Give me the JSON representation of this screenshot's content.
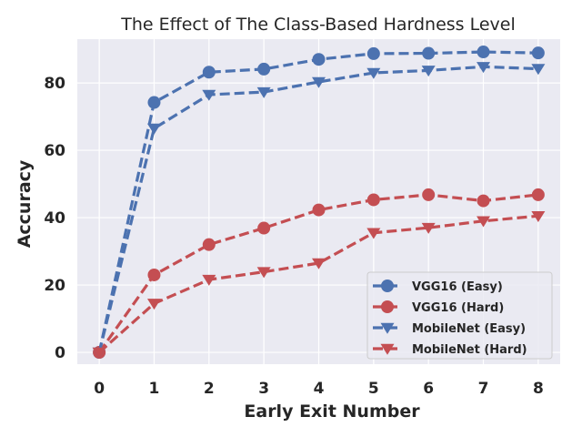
{
  "chart_data": {
    "type": "line",
    "title": "The Effect of The Class-Based Hardness Level",
    "xlabel": "Early Exit Number",
    "ylabel": "Accuracy",
    "x": [
      0,
      1,
      2,
      3,
      4,
      5,
      6,
      7,
      8
    ],
    "x_ticks": [
      "0",
      "1",
      "2",
      "3",
      "4",
      "5",
      "6",
      "7",
      "8"
    ],
    "y_ticks": [
      "0",
      "20",
      "40",
      "60",
      "80"
    ],
    "xlim": [
      -0.4,
      8.4
    ],
    "ylim": [
      -3.5,
      93
    ],
    "grid": true,
    "legend_position": "lower-right",
    "series": [
      {
        "name": "VGG16 (Easy)",
        "color": "#4c72b0",
        "marker": "circle",
        "values": [
          0,
          74.2,
          83.2,
          84.1,
          87.0,
          88.7,
          88.8,
          89.2,
          88.9
        ]
      },
      {
        "name": "VGG16 (Hard)",
        "color": "#c44e52",
        "marker": "circle",
        "values": [
          0,
          23.0,
          32.0,
          36.9,
          42.3,
          45.3,
          46.8,
          45.0,
          46.8
        ]
      },
      {
        "name": "MobileNet (Easy)",
        "color": "#4c72b0",
        "marker": "triangle-down",
        "values": [
          0,
          66.5,
          76.5,
          77.3,
          80.3,
          83.0,
          83.7,
          84.8,
          84.2
        ]
      },
      {
        "name": "MobileNet (Hard)",
        "color": "#c44e52",
        "marker": "triangle-down",
        "values": [
          0,
          14.5,
          21.6,
          23.9,
          26.5,
          35.5,
          37.0,
          39.0,
          40.5
        ]
      }
    ]
  }
}
